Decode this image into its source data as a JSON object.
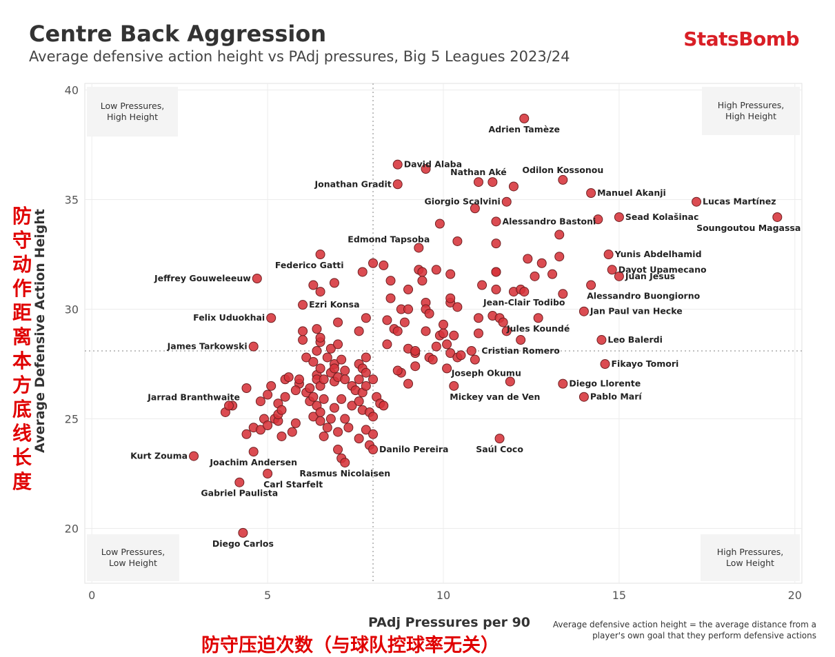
{
  "header": {
    "title": "Centre Back Aggression",
    "subtitle": "Average defensive action height vs PAdj pressures, Big 5 Leagues 2023/24",
    "brand": "StatsBomb"
  },
  "annotations": {
    "cn_y": "防守动作距离本方底线长度",
    "cn_x": "防守压迫次数（与球队控球率无关）",
    "footnote": "Average defensive action height = the average distance from a player's own goal that they perform defensive actions"
  },
  "colors": {
    "point": "#d6333a",
    "point_stroke": "#6e1e20",
    "brand": "#d91f26",
    "annot": "#e00000"
  },
  "chart_data": {
    "type": "scatter",
    "title": "Centre Back Aggression",
    "xlabel": "PAdj Pressures per 90",
    "ylabel": "Average Defensive Action Height",
    "xlim": [
      -0.2,
      20.2
    ],
    "ylim": [
      17.5,
      40.3
    ],
    "xticks": [
      0,
      5,
      10,
      15,
      20
    ],
    "yticks": [
      20,
      25,
      30,
      35,
      40
    ],
    "grid": true,
    "ref_lines": {
      "x": 8,
      "y": 28.1
    },
    "quadrants": [
      {
        "label": "Low Pressures,\nHigh Height",
        "pos": "top-left"
      },
      {
        "label": "High Pressures,\nHigh Height",
        "pos": "top-right"
      },
      {
        "label": "Low Pressures,\nLow Height",
        "pos": "bottom-left"
      },
      {
        "label": "High Pressures,\nLow Height",
        "pos": "bottom-right"
      }
    ],
    "labeled_points": [
      {
        "name": "Adrien Tamèze",
        "x": 12.3,
        "y": 38.7,
        "anchor": "below"
      },
      {
        "name": "David Alaba",
        "x": 8.7,
        "y": 36.6,
        "anchor": "right"
      },
      {
        "name": "Jonathan Gradit",
        "x": 8.7,
        "y": 35.7,
        "anchor": "left"
      },
      {
        "name": "Nathan Aké",
        "x": 11.0,
        "y": 35.8,
        "anchor": "above"
      },
      {
        "name": "Odilon Kossonou",
        "x": 13.4,
        "y": 35.9,
        "anchor": "above"
      },
      {
        "name": "Manuel Akanji",
        "x": 14.2,
        "y": 35.3,
        "anchor": "right"
      },
      {
        "name": "Lucas Martínez",
        "x": 17.2,
        "y": 34.9,
        "anchor": "right"
      },
      {
        "name": "Giorgio Scalvini",
        "x": 11.8,
        "y": 34.9,
        "anchor": "left"
      },
      {
        "name": "Sead Kolašinac",
        "x": 15.0,
        "y": 34.2,
        "anchor": "right"
      },
      {
        "name": "Soungoutou Magassa",
        "x": 19.5,
        "y": 34.2,
        "anchor": "below-left"
      },
      {
        "name": "Alessandro Bastoni",
        "x": 11.5,
        "y": 34.0,
        "anchor": "right"
      },
      {
        "name": "Edmond Tapsoba",
        "x": 9.3,
        "y": 32.8,
        "anchor": "above-left"
      },
      {
        "name": "Federico Gatti",
        "x": 6.5,
        "y": 32.5,
        "anchor": "below-left"
      },
      {
        "name": "Yunis Abdelhamid",
        "x": 14.7,
        "y": 32.5,
        "anchor": "right"
      },
      {
        "name": "Dayot Upamecano",
        "x": 14.8,
        "y": 31.8,
        "anchor": "right"
      },
      {
        "name": "Jeffrey Gouweleeuw",
        "x": 4.7,
        "y": 31.4,
        "anchor": "left"
      },
      {
        "name": "Juan Jesus",
        "x": 15.0,
        "y": 31.5,
        "anchor": "right"
      },
      {
        "name": "Alessandro Buongiorno",
        "x": 14.2,
        "y": 31.1,
        "anchor": "below-right"
      },
      {
        "name": "Jean-Clair Todibo",
        "x": 12.3,
        "y": 30.8,
        "anchor": "below"
      },
      {
        "name": "Ezri Konsa",
        "x": 6.0,
        "y": 30.2,
        "anchor": "right"
      },
      {
        "name": "Jan Paul van Hecke",
        "x": 14.0,
        "y": 29.9,
        "anchor": "right"
      },
      {
        "name": "Felix Uduokhai",
        "x": 5.1,
        "y": 29.6,
        "anchor": "left"
      },
      {
        "name": "Jules Koundé",
        "x": 12.7,
        "y": 29.6,
        "anchor": "below"
      },
      {
        "name": "Leo Balerdi",
        "x": 14.5,
        "y": 28.6,
        "anchor": "right"
      },
      {
        "name": "James Tarkowski",
        "x": 4.6,
        "y": 28.3,
        "anchor": "left"
      },
      {
        "name": "Cristian Romero",
        "x": 12.2,
        "y": 28.6,
        "anchor": "below"
      },
      {
        "name": "Fikayo Tomori",
        "x": 14.6,
        "y": 27.5,
        "anchor": "right"
      },
      {
        "name": "Joseph Okumu",
        "x": 11.9,
        "y": 26.7,
        "anchor": "above-left"
      },
      {
        "name": "Diego Llorente",
        "x": 13.4,
        "y": 26.6,
        "anchor": "right"
      },
      {
        "name": "Jarrad Branthwaite",
        "x": 3.9,
        "y": 25.6,
        "anchor": "above-left"
      },
      {
        "name": "Mickey van de Ven",
        "x": 10.3,
        "y": 26.5,
        "anchor": "below-right"
      },
      {
        "name": "Pablo Marí",
        "x": 14.0,
        "y": 26.0,
        "anchor": "right"
      },
      {
        "name": "Saúl Coco",
        "x": 11.6,
        "y": 24.1,
        "anchor": "below"
      },
      {
        "name": "Kurt Zouma",
        "x": 2.9,
        "y": 23.3,
        "anchor": "left"
      },
      {
        "name": "Danilo Pereira",
        "x": 8.0,
        "y": 23.6,
        "anchor": "right"
      },
      {
        "name": "Joachim Andersen",
        "x": 4.6,
        "y": 23.5,
        "anchor": "below"
      },
      {
        "name": "Rasmus Nicolaisen",
        "x": 7.2,
        "y": 23.0,
        "anchor": "below"
      },
      {
        "name": "Carl Starfelt",
        "x": 5.0,
        "y": 22.5,
        "anchor": "below-right"
      },
      {
        "name": "Gabriel Paulista",
        "x": 4.2,
        "y": 22.1,
        "anchor": "below"
      },
      {
        "name": "Diego Carlos",
        "x": 4.3,
        "y": 19.8,
        "anchor": "below"
      }
    ],
    "points": [
      [
        3.8,
        25.3
      ],
      [
        4.0,
        25.6
      ],
      [
        4.4,
        26.4
      ],
      [
        4.4,
        24.3
      ],
      [
        4.6,
        24.6
      ],
      [
        4.8,
        24.5
      ],
      [
        4.8,
        25.8
      ],
      [
        4.9,
        25.0
      ],
      [
        5.0,
        26.1
      ],
      [
        5.0,
        24.7
      ],
      [
        5.1,
        26.5
      ],
      [
        5.2,
        25.0
      ],
      [
        5.3,
        24.9
      ],
      [
        5.3,
        25.2
      ],
      [
        5.3,
        25.7
      ],
      [
        5.4,
        24.2
      ],
      [
        5.4,
        25.4
      ],
      [
        5.5,
        26.0
      ],
      [
        5.5,
        26.8
      ],
      [
        5.6,
        26.9
      ],
      [
        5.7,
        24.4
      ],
      [
        5.8,
        24.8
      ],
      [
        5.9,
        26.6
      ],
      [
        5.9,
        26.8
      ],
      [
        6.0,
        28.6
      ],
      [
        6.0,
        29.0
      ],
      [
        6.1,
        27.8
      ],
      [
        6.1,
        26.2
      ],
      [
        6.2,
        25.8
      ],
      [
        6.2,
        26.4
      ],
      [
        6.3,
        26.0
      ],
      [
        6.3,
        25.1
      ],
      [
        6.3,
        27.6
      ],
      [
        6.4,
        29.1
      ],
      [
        6.4,
        28.1
      ],
      [
        6.4,
        27.0
      ],
      [
        6.4,
        26.8
      ],
      [
        6.4,
        25.6
      ],
      [
        6.5,
        28.5
      ],
      [
        6.5,
        28.7
      ],
      [
        6.5,
        27.3
      ],
      [
        6.5,
        26.5
      ],
      [
        6.5,
        25.3
      ],
      [
        6.5,
        24.9
      ],
      [
        6.6,
        25.9
      ],
      [
        6.6,
        24.2
      ],
      [
        6.6,
        26.8
      ],
      [
        6.7,
        24.6
      ],
      [
        6.8,
        25.0
      ],
      [
        6.8,
        27.1
      ],
      [
        6.8,
        28.2
      ],
      [
        6.9,
        27.5
      ],
      [
        6.9,
        27.3
      ],
      [
        6.9,
        26.7
      ],
      [
        6.9,
        25.5
      ],
      [
        7.0,
        24.4
      ],
      [
        7.0,
        26.9
      ],
      [
        7.0,
        28.4
      ],
      [
        7.0,
        23.6
      ],
      [
        7.1,
        23.2
      ],
      [
        7.1,
        25.9
      ],
      [
        7.1,
        27.7
      ],
      [
        7.2,
        27.2
      ],
      [
        7.2,
        25.0
      ],
      [
        7.2,
        26.8
      ],
      [
        7.3,
        24.6
      ],
      [
        7.4,
        25.6
      ],
      [
        7.4,
        26.5
      ],
      [
        7.5,
        26.3
      ],
      [
        7.6,
        29.0
      ],
      [
        7.6,
        27.5
      ],
      [
        7.6,
        26.8
      ],
      [
        7.6,
        25.8
      ],
      [
        7.6,
        24.1
      ],
      [
        7.7,
        27.3
      ],
      [
        7.7,
        26.2
      ],
      [
        7.7,
        25.4
      ],
      [
        7.8,
        27.8
      ],
      [
        7.8,
        27.1
      ],
      [
        7.8,
        26.5
      ],
      [
        7.8,
        24.5
      ],
      [
        7.9,
        25.3
      ],
      [
        7.9,
        23.8
      ],
      [
        8.0,
        26.8
      ],
      [
        8.0,
        25.1
      ],
      [
        8.0,
        24.3
      ],
      [
        8.1,
        26.0
      ],
      [
        8.2,
        25.7
      ],
      [
        8.3,
        25.6
      ],
      [
        8.4,
        28.4
      ],
      [
        8.4,
        29.5
      ],
      [
        8.5,
        30.5
      ],
      [
        8.6,
        29.1
      ],
      [
        8.7,
        29.0
      ],
      [
        8.8,
        30.0
      ],
      [
        8.8,
        27.1
      ],
      [
        8.9,
        29.4
      ],
      [
        9.0,
        28.2
      ],
      [
        9.0,
        26.6
      ],
      [
        9.0,
        30.0
      ],
      [
        9.2,
        27.4
      ],
      [
        9.2,
        28.0
      ],
      [
        9.2,
        28.1
      ],
      [
        9.3,
        31.8
      ],
      [
        9.4,
        31.7
      ],
      [
        9.4,
        31.3
      ],
      [
        9.5,
        30.3
      ],
      [
        9.5,
        30.0
      ],
      [
        9.5,
        29.0
      ],
      [
        9.6,
        29.8
      ],
      [
        9.6,
        27.8
      ],
      [
        9.7,
        27.7
      ],
      [
        9.8,
        28.3
      ],
      [
        9.9,
        28.8
      ],
      [
        10.0,
        28.9
      ],
      [
        10.0,
        29.3
      ],
      [
        10.1,
        27.3
      ],
      [
        10.1,
        28.4
      ],
      [
        10.2,
        30.3
      ],
      [
        10.2,
        30.5
      ],
      [
        10.2,
        28.0
      ],
      [
        10.2,
        31.6
      ],
      [
        10.3,
        28.8
      ],
      [
        10.4,
        27.8
      ],
      [
        10.4,
        30.1
      ],
      [
        10.5,
        27.9
      ],
      [
        10.8,
        28.1
      ],
      [
        10.9,
        27.7
      ],
      [
        11.0,
        29.6
      ],
      [
        11.0,
        28.9
      ],
      [
        11.1,
        31.1
      ],
      [
        11.4,
        29.7
      ],
      [
        11.5,
        30.9
      ],
      [
        11.5,
        31.7
      ],
      [
        11.6,
        29.6
      ],
      [
        11.7,
        29.4
      ],
      [
        11.8,
        29.0
      ],
      [
        12.0,
        30.8
      ],
      [
        12.2,
        30.9
      ],
      [
        12.4,
        32.3
      ],
      [
        12.6,
        31.5
      ],
      [
        12.8,
        32.1
      ],
      [
        13.1,
        31.6
      ],
      [
        13.3,
        33.4
      ],
      [
        13.3,
        32.4
      ],
      [
        13.4,
        30.7
      ],
      [
        9.5,
        36.4
      ],
      [
        9.8,
        31.8
      ],
      [
        9.9,
        33.9
      ],
      [
        10.4,
        33.1
      ],
      [
        10.9,
        34.6
      ],
      [
        11.5,
        33.0
      ],
      [
        11.5,
        31.7
      ],
      [
        6.9,
        31.2
      ],
      [
        7.0,
        29.4
      ],
      [
        7.8,
        29.6
      ],
      [
        8.0,
        32.1
      ],
      [
        8.3,
        32.0
      ],
      [
        8.7,
        27.2
      ],
      [
        9.0,
        30.9
      ],
      [
        11.4,
        35.8
      ],
      [
        12.0,
        35.6
      ],
      [
        14.4,
        34.1
      ],
      [
        6.3,
        31.1
      ],
      [
        6.5,
        30.8
      ],
      [
        5.8,
        26.3
      ],
      [
        6.7,
        27.8
      ],
      [
        7.7,
        31.7
      ],
      [
        8.5,
        31.3
      ]
    ]
  }
}
